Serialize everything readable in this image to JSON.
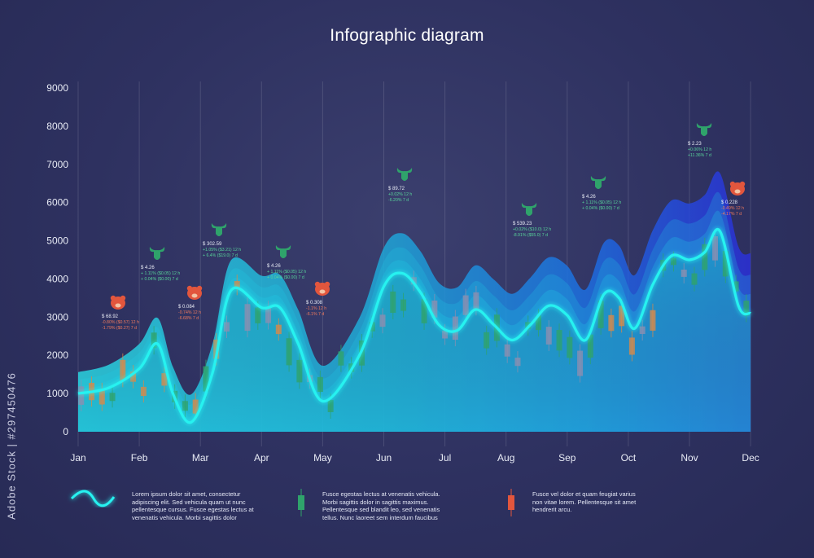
{
  "title": "Infographic diagram",
  "side_label": "Adobe Stock | #297450476",
  "colors": {
    "background": "#2e3160",
    "line": "#27f2f0",
    "bull": "#2fa36b",
    "bear": "#e2563d"
  },
  "chart_data": {
    "type": "line",
    "title": "Infographic diagram",
    "ylim": [
      0,
      9000
    ],
    "y_ticks": [
      "9000",
      "8000",
      "7000",
      "6000",
      "5000",
      "4000",
      "3000",
      "2000",
      "1000",
      "0"
    ],
    "categories": [
      "Jan",
      "Feb",
      "Mar",
      "Apr",
      "May",
      "Jun",
      "Jul",
      "Aug",
      "Sep",
      "Oct",
      "Nov",
      "Dec"
    ],
    "grid": true,
    "series": [
      {
        "values_x": [
          0,
          0.5,
          1.0,
          1.3,
          1.55,
          1.85,
          2.2,
          2.5,
          3.0,
          3.3,
          3.6,
          4.0,
          4.6,
          5.0,
          5.3,
          5.6,
          5.9,
          6.2,
          6.5,
          6.8,
          7.1,
          7.4,
          7.7,
          8.0,
          8.3,
          8.6,
          8.85,
          9.1,
          9.4,
          9.7,
          10.0,
          10.25,
          10.5,
          10.8,
          11.0
        ],
        "values_y": [
          1000,
          1150,
          1650,
          2300,
          1000,
          250,
          1550,
          3700,
          3250,
          3250,
          2300,
          800,
          2000,
          3800,
          4150,
          3650,
          2800,
          2650,
          3200,
          2800,
          2400,
          2800,
          3300,
          3050,
          2400,
          3600,
          3500,
          2700,
          3850,
          4600,
          4500,
          4700,
          5250,
          3300,
          3100
        ]
      }
    ],
    "annotations": [
      {
        "kind": "bear",
        "price": "$ 68.92",
        "lines": [
          "-0.80% ($0.57) 12 h",
          "-1.79% ($0.27) 7 d"
        ]
      },
      {
        "kind": "bull",
        "price": "$ 4.26",
        "lines": [
          "+ 1.11% ($0.05) 12 h",
          "+ 0.04% ($0.00) 7 d"
        ]
      },
      {
        "kind": "bear",
        "price": "$ 0.084",
        "lines": [
          "-0.74% 12 h",
          "-6.68% 7 d"
        ]
      },
      {
        "kind": "bull",
        "price": "$ 302.59",
        "lines": [
          "+1.05% ($3.21) 12 h",
          "+ 6.4% ($19.0) 7 d"
        ]
      },
      {
        "kind": "bull",
        "price": "$ 4.26",
        "lines": [
          "+ 1.11% ($0.05) 12 h",
          "+ 0.04% ($0.00) 7 d"
        ]
      },
      {
        "kind": "bear",
        "price": "$ 0.308",
        "lines": [
          "-1.1% 12 h",
          "-6.1% 7 d"
        ]
      },
      {
        "kind": "bull",
        "price": "$ 89.72",
        "lines": [
          "+0.02% 12 h",
          "-6.20% 7 d"
        ]
      },
      {
        "kind": "bull",
        "price": "$ 539.23",
        "lines": [
          "+0.02% ($10.0) 12 h",
          "-8.91% ($55.0) 7 d"
        ]
      },
      {
        "kind": "bull",
        "price": "$ 4.26",
        "lines": [
          "+ 1.11% ($0.05) 12 h",
          "+ 0.04% ($0.00) 7 d"
        ]
      },
      {
        "kind": "bull",
        "price": "$ 2.23",
        "lines": [
          "+0.06% 12 h",
          "+11.36% 7 d"
        ]
      },
      {
        "kind": "bear",
        "price": "$ 0.228",
        "lines": [
          "-0.49% 12 h",
          "-4.17% 7 d"
        ]
      }
    ]
  },
  "legend": [
    {
      "icon": "wave-icon",
      "text": "Lorem ipsum dolor sit amet, consectetur adipiscing elit. Sed vehicula quam ut nunc pellentesque cursus. Fusce egestas lectus at venenatis vehicula. Morbi sagittis dolor"
    },
    {
      "icon": "green-candle-icon",
      "text": "Fusce egestas lectus at venenatis vehicula. Morbi sagittis dolor in sagittis maximus. Pellentesque sed blandit leo, sed venenatis tellus. Nunc laoreet sem interdum faucibus"
    },
    {
      "icon": "red-candle-icon",
      "text": "Fusce vel dolor et quam feugiat varius non vitae lorem. Pellentesque sit amet hendrerit arcu."
    }
  ]
}
